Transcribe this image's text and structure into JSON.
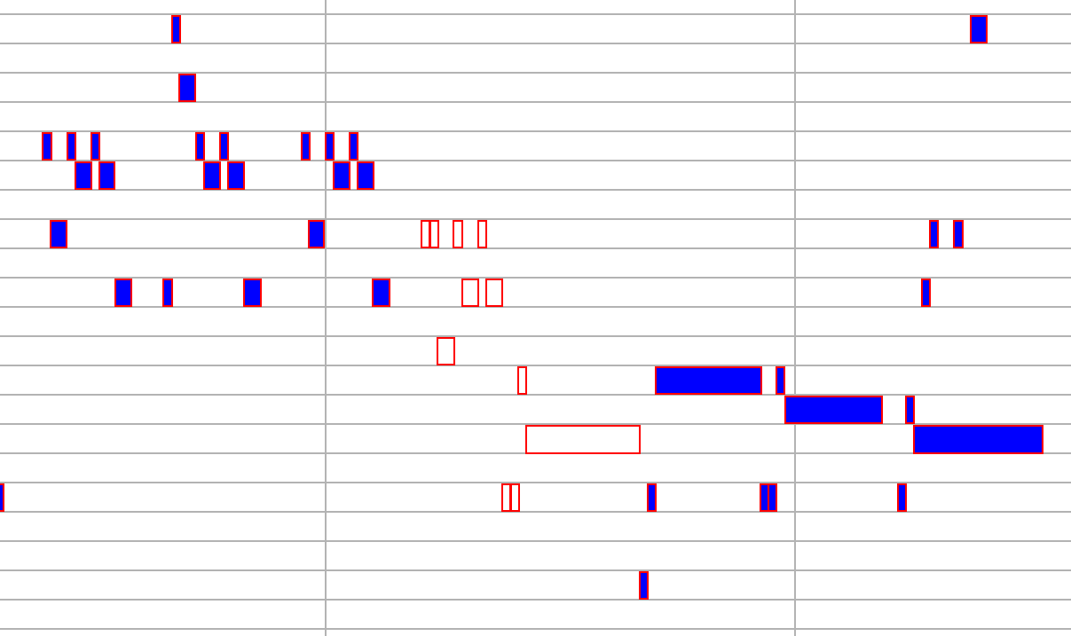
{
  "editor": {
    "view": "piano-roll",
    "colors": {
      "background": "#ffffff",
      "grid_line": "#b3b3b3",
      "note_border": "#ff0000",
      "active_note_fill": "#0000ff"
    }
  }
}
